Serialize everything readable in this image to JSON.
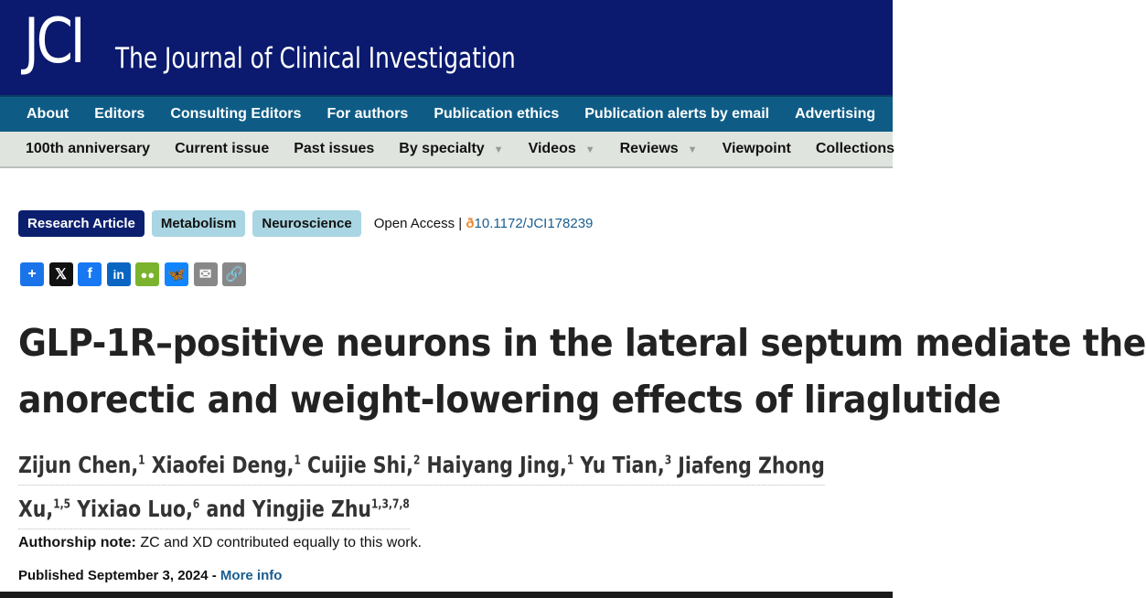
{
  "header": {
    "logo": "JCI",
    "journal_title": "The Journal of Clinical Investigation",
    "bg": "#0b1a6e"
  },
  "nav_primary": [
    "About",
    "Editors",
    "Consulting Editors",
    "For authors",
    "Publication ethics",
    "Publication alerts by email",
    "Advertising"
  ],
  "nav_secondary": [
    {
      "label": "100th anniversary"
    },
    {
      "label": "Current issue"
    },
    {
      "label": "Past issues"
    },
    {
      "label": "By specialty",
      "dropdown": true
    },
    {
      "label": "Videos",
      "dropdown": true
    },
    {
      "label": "Reviews",
      "dropdown": true
    },
    {
      "label": "Viewpoint"
    },
    {
      "label": "Collections"
    }
  ],
  "tags": [
    "Research Article",
    "Metabolism",
    "Neuroscience"
  ],
  "open_access": "Open Access |",
  "doi": "10.1172/JCI178239",
  "share_icons": [
    "add-icon",
    "x-icon",
    "facebook-icon",
    "linkedin-icon",
    "wechat-icon",
    "bluesky-icon",
    "email-icon",
    "copy-link-icon"
  ],
  "article": {
    "title_lines": [
      "GLP-1R–positive neurons in the lateral septum mediate the",
      "anorectic and weight-lowering effects of liraglutide"
    ],
    "authors_line1": [
      {
        "name": "Zijun Chen,",
        "sup": "1"
      },
      {
        "name": " Xiaofei Deng,",
        "sup": "1"
      },
      {
        "name": " Cuijie Shi,",
        "sup": "2"
      },
      {
        "name": " Haiyang Jing,",
        "sup": "1"
      },
      {
        "name": " Yu Tian,",
        "sup": "3"
      },
      {
        "name": " Jiafeng Zhong",
        "sup": ""
      }
    ],
    "authors_line2": [
      {
        "name": "Xu,",
        "sup": "1,5"
      },
      {
        "name": " Yixiao Luo,",
        "sup": "6"
      },
      {
        "name": " and Yingjie Zhu",
        "sup": "1,3,7,8"
      }
    ],
    "note_label": "Authorship note:",
    "note_text": " ZC and XD contributed equally to this work.",
    "published": "Published September 3, 2024 - ",
    "more_info": "More info"
  }
}
